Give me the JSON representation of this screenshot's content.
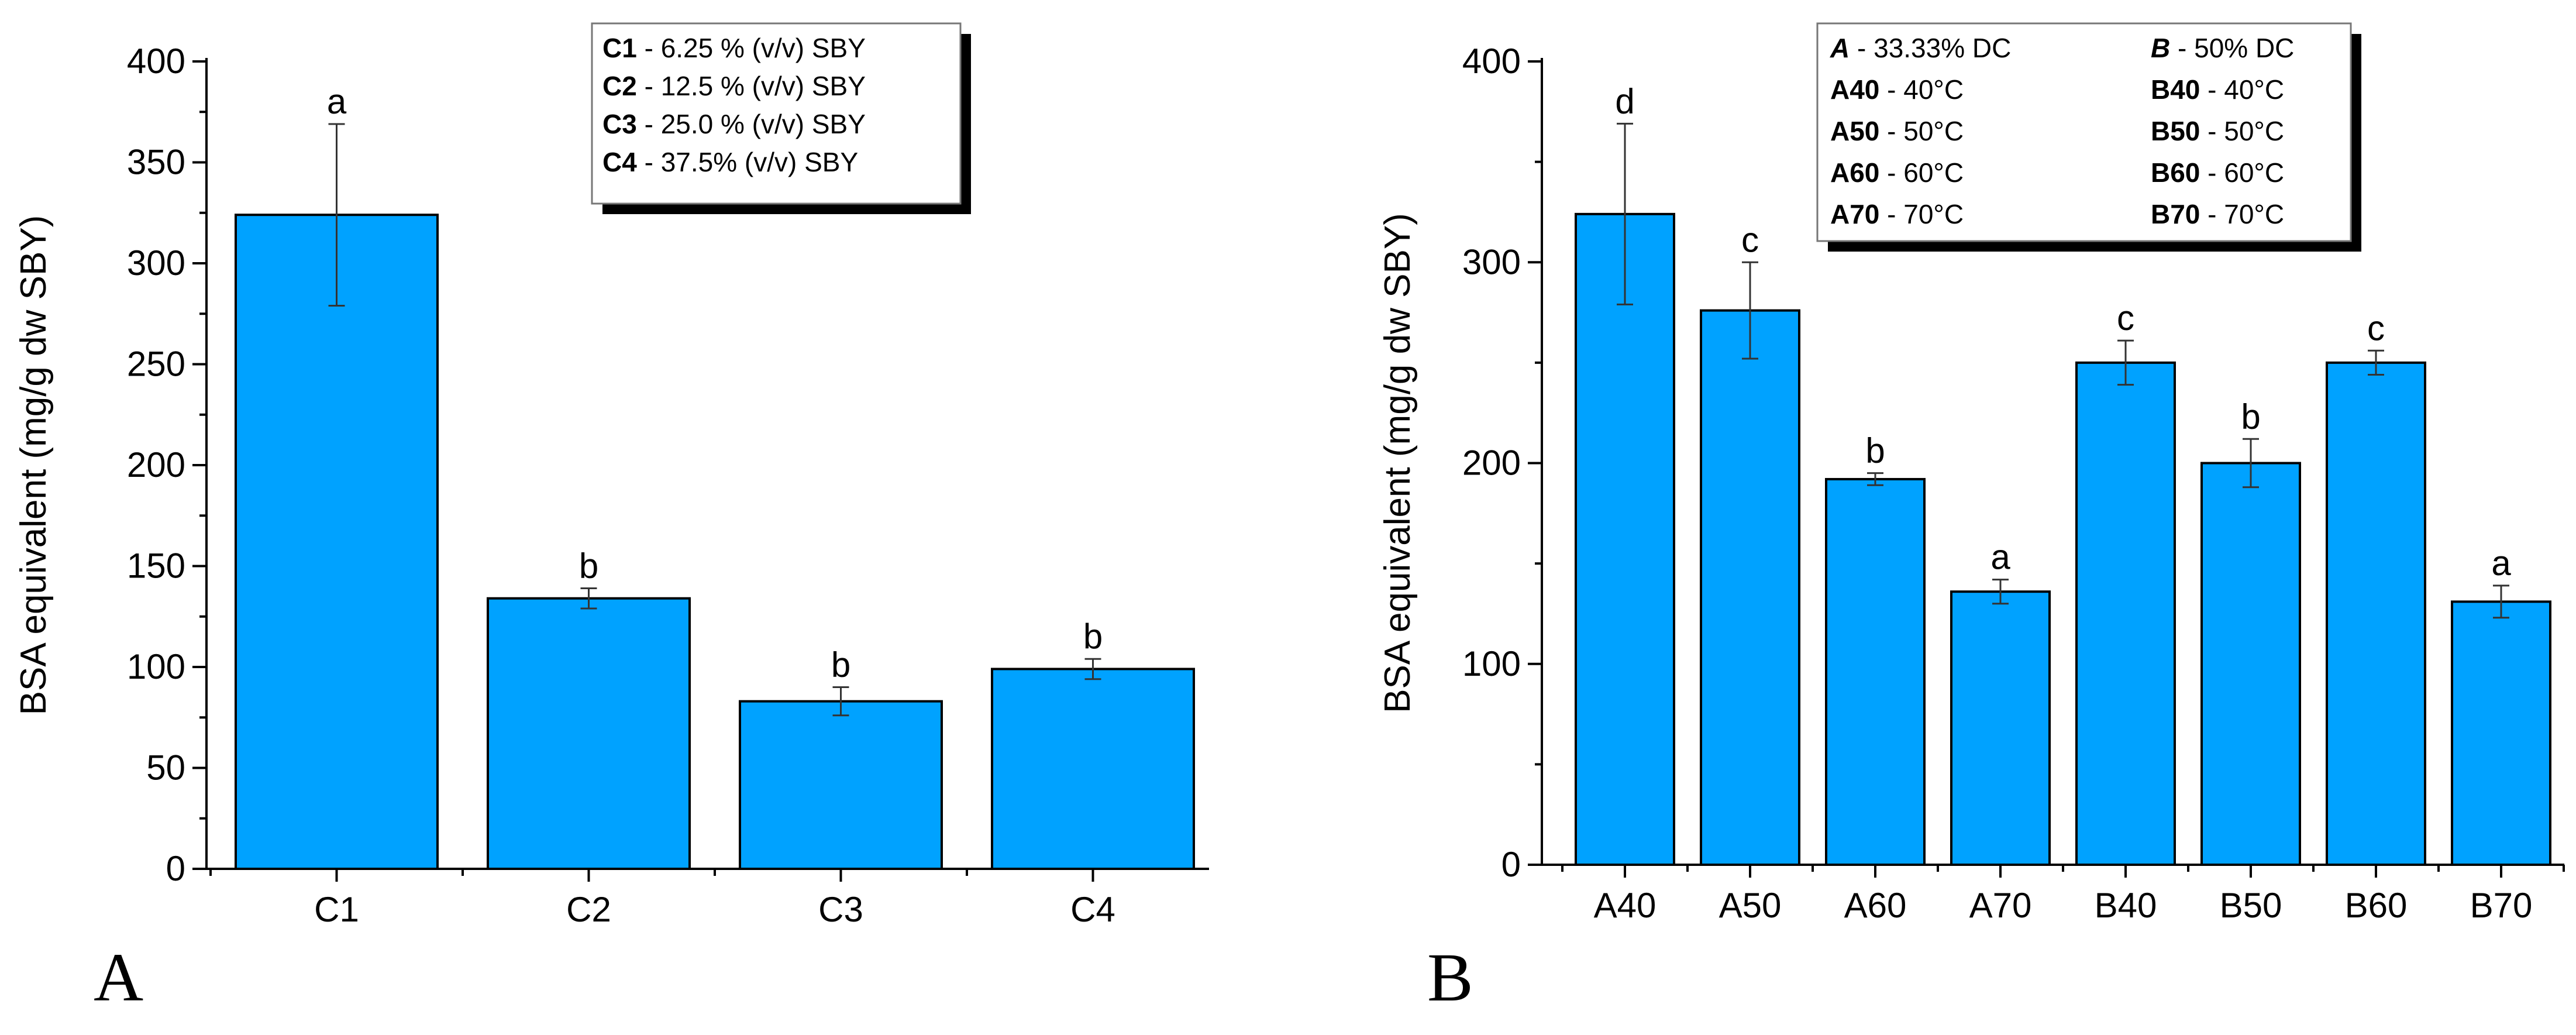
{
  "colors": {
    "bar_fill": "#00a2ff",
    "bar_stroke": "#000000",
    "axis": "#000000"
  },
  "chart_data": [
    {
      "type": "bar",
      "panel_label": "A",
      "categories": [
        "C1",
        "C2",
        "C3",
        "C4"
      ],
      "values": [
        324,
        134,
        83,
        99
      ],
      "errors": [
        45,
        5,
        7,
        5
      ],
      "significance": [
        "a",
        "b",
        "b",
        "b"
      ],
      "title": "",
      "xlabel": "",
      "ylabel": "BSA equivalent (mg/g dw SBY)",
      "ylim": [
        0,
        400
      ],
      "yticks": [
        0,
        50,
        100,
        150,
        200,
        250,
        300,
        350,
        400
      ],
      "legend_rows": [
        [
          {
            "key": "C1",
            "text": " - 6.25 % (v/v) SBY"
          }
        ],
        [
          {
            "key": "C2",
            "text": " - 12.5 % (v/v) SBY"
          }
        ],
        [
          {
            "key": "C3",
            "text": " - 25.0 % (v/v) SBY"
          }
        ],
        [
          {
            "key": "C4",
            "text": " - 37.5%  (v/v) SBY"
          }
        ]
      ]
    },
    {
      "type": "bar",
      "panel_label": "B",
      "categories": [
        "A40",
        "A50",
        "A60",
        "A70",
        "B40",
        "B50",
        "B60",
        "B70"
      ],
      "values": [
        324,
        276,
        192,
        136,
        250,
        200,
        250,
        131
      ],
      "errors": [
        45,
        24,
        3,
        6,
        11,
        12,
        6,
        8
      ],
      "significance": [
        "d",
        "c",
        "b",
        "a",
        "c",
        "b",
        "c",
        "a"
      ],
      "title": "",
      "xlabel": "",
      "ylabel": "BSA equivalent (mg/g dw SBY)",
      "ylim": [
        0,
        400
      ],
      "yticks": [
        0,
        100,
        200,
        300,
        400
      ],
      "legend_rows": [
        [
          {
            "key": "A",
            "text": " - 33.33% DC",
            "italic": true
          },
          {
            "key": "B",
            "text": " - 50% DC",
            "italic": true
          }
        ],
        [
          {
            "key": "A40",
            "text": " - 40°C"
          },
          {
            "key": "B40",
            "text": " - 40°C"
          }
        ],
        [
          {
            "key": "A50",
            "text": " - 50°C"
          },
          {
            "key": "B50",
            "text": " - 50°C"
          }
        ],
        [
          {
            "key": "A60",
            "text": " - 60°C"
          },
          {
            "key": "B60",
            "text": " - 60°C"
          }
        ],
        [
          {
            "key": "A70",
            "text": " - 70°C"
          },
          {
            "key": "B70",
            "text": " - 70°C"
          }
        ]
      ]
    }
  ]
}
